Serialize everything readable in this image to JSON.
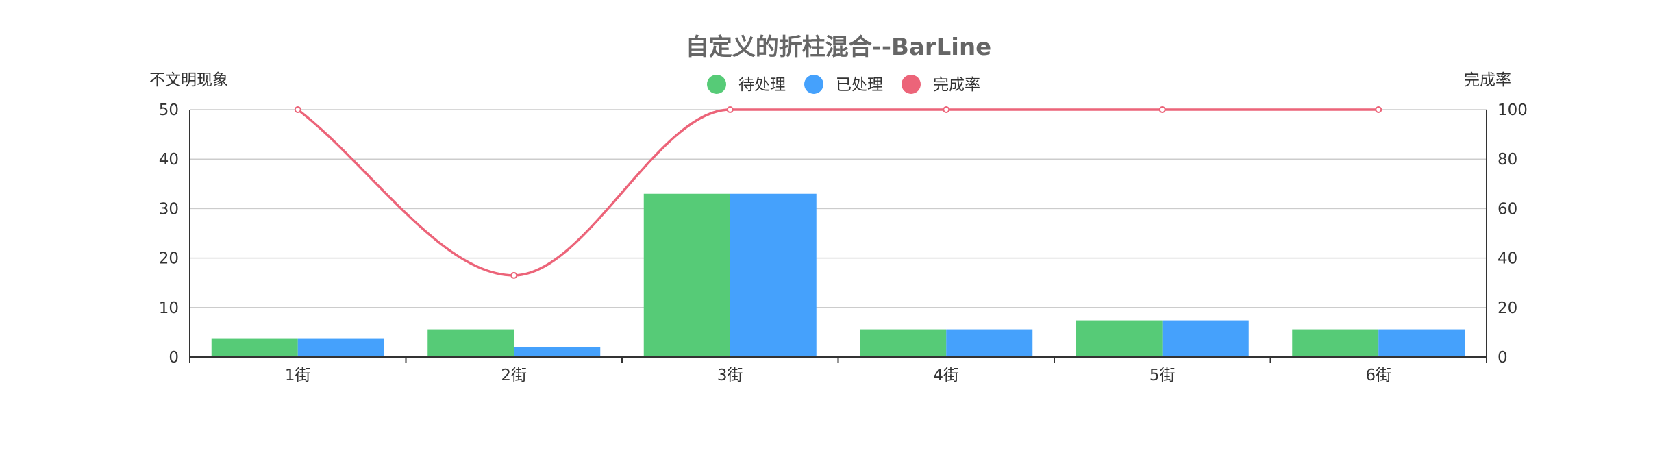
{
  "chart_data": {
    "type": "bar",
    "title": "自定义的折柱混合--BarLine",
    "categories": [
      "1街",
      "2街",
      "3街",
      "4街",
      "5街",
      "6街"
    ],
    "y_left": {
      "name": "不文明现象",
      "min": 0,
      "max": 50,
      "ticks": [
        "0",
        "10",
        "20",
        "30",
        "40",
        "50"
      ]
    },
    "y_right": {
      "name": "完成率",
      "min": 0,
      "max": 100,
      "ticks": [
        "0",
        "20",
        "40",
        "60",
        "80",
        "100"
      ]
    },
    "series": [
      {
        "name": "待处理",
        "type": "bar",
        "axis": "left",
        "color": "#56cb77",
        "values": [
          3.8,
          5.6,
          33,
          5.6,
          7.4,
          5.6
        ]
      },
      {
        "name": "已处理",
        "type": "bar",
        "axis": "left",
        "color": "#45a1fc",
        "values": [
          3.8,
          2,
          33,
          5.6,
          7.4,
          5.6
        ]
      },
      {
        "name": "完成率",
        "type": "line",
        "axis": "right",
        "smooth": true,
        "color": "#ec6479",
        "values": [
          100,
          33,
          100,
          100,
          100,
          100
        ]
      }
    ],
    "grid": true,
    "legend_position": "top-center"
  }
}
